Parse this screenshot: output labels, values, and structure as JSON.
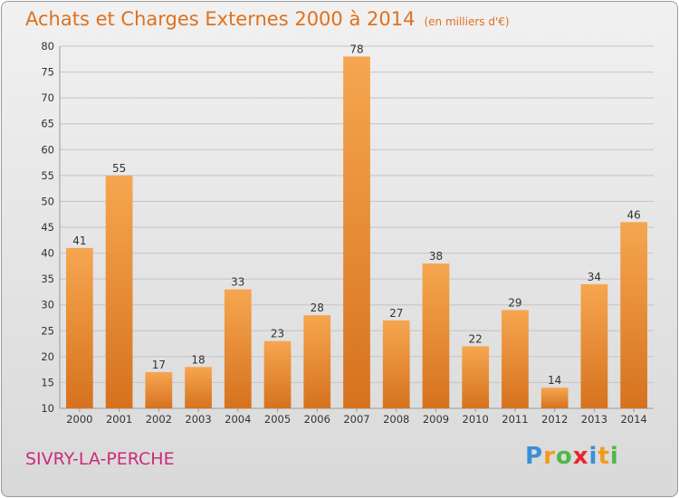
{
  "title": "Achats et Charges Externes 2000 à 2014",
  "subtitle": "(en milliers d'€)",
  "commune": "SIVRY-LA-PERCHE",
  "logo": {
    "letters": [
      "P",
      "r",
      "o",
      "x",
      "i",
      "t",
      "i"
    ],
    "colors": [
      "#3a8fd6",
      "#f29a1f",
      "#4fb848",
      "#e8262c",
      "#3a8fd6",
      "#f29a1f",
      "#4fb848"
    ]
  },
  "colors": {
    "title": "#e0711c",
    "commune": "#cc2b79",
    "bar_light": "#f6a650",
    "bar_dark": "#d6721e"
  },
  "chart_data": {
    "type": "bar",
    "categories": [
      "2000",
      "2001",
      "2002",
      "2003",
      "2004",
      "2005",
      "2006",
      "2007",
      "2008",
      "2009",
      "2010",
      "2011",
      "2012",
      "2013",
      "2014"
    ],
    "values": [
      41,
      55,
      17,
      18,
      33,
      23,
      28,
      78,
      27,
      38,
      22,
      29,
      14,
      34,
      46
    ],
    "title": "Achats et Charges Externes 2000 à 2014",
    "subtitle": "(en milliers d'€)",
    "xlabel": "",
    "ylabel": "",
    "ylim": [
      10,
      80
    ],
    "yticks": [
      10,
      15,
      20,
      25,
      30,
      35,
      40,
      45,
      50,
      55,
      60,
      65,
      70,
      75,
      80
    ],
    "grid": true,
    "legend": "none"
  }
}
